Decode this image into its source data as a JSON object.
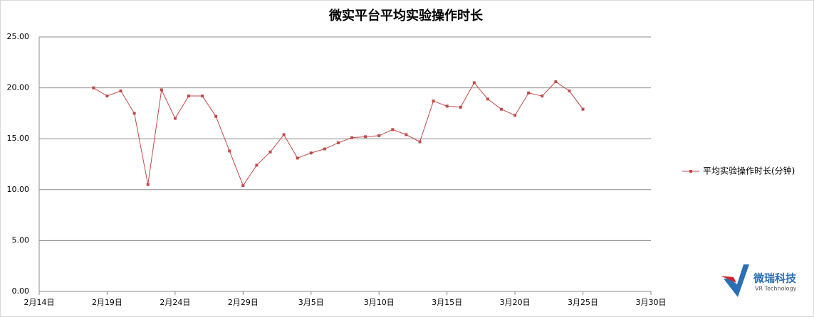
{
  "chart_data": {
    "type": "line",
    "title": "微实平台平均实验操作时长",
    "x": [
      "2月18日",
      "2月19日",
      "2月20日",
      "2月21日",
      "2月22日",
      "2月23日",
      "2月24日",
      "2月25日",
      "2月26日",
      "2月27日",
      "2月28日",
      "2月29日",
      "3月1日",
      "3月2日",
      "3月3日",
      "3月4日",
      "3月5日",
      "3月6日",
      "3月7日",
      "3月8日",
      "3月9日",
      "3月10日",
      "3月11日",
      "3月12日",
      "3月13日",
      "3月14日",
      "3月15日",
      "3月16日",
      "3月17日",
      "3月18日",
      "3月19日",
      "3月20日",
      "3月21日",
      "3月22日",
      "3月23日",
      "3月24日",
      "3月25日"
    ],
    "series": [
      {
        "name": "平均实验操作时长(分钟)",
        "color": "#be4b48",
        "values": [
          20.0,
          19.2,
          19.7,
          17.5,
          10.5,
          19.8,
          17.0,
          19.2,
          19.2,
          17.2,
          13.8,
          10.4,
          12.4,
          13.7,
          15.4,
          13.1,
          13.6,
          14.0,
          14.6,
          15.1,
          15.2,
          15.3,
          15.9,
          15.4,
          14.7,
          18.7,
          18.2,
          18.1,
          20.5,
          18.9,
          17.9,
          17.3,
          19.5,
          19.2,
          20.6,
          19.7,
          17.9
        ]
      }
    ],
    "xlim": [
      "2月14日",
      "3月30日"
    ],
    "xticks": [
      "2月14日",
      "2月19日",
      "2月24日",
      "2月29日",
      "3月5日",
      "3月10日",
      "3月15日",
      "3月20日",
      "3月25日",
      "3月30日"
    ],
    "ylim": [
      0,
      25
    ],
    "yticks": [
      {
        "value": 0,
        "label": "0.00"
      },
      {
        "value": 5,
        "label": "5.00"
      },
      {
        "value": 10,
        "label": "10.00"
      },
      {
        "value": 15,
        "label": "15.00"
      },
      {
        "value": 20,
        "label": "20.00"
      },
      {
        "value": 25,
        "label": "25.00"
      }
    ],
    "grid": true,
    "legend": "right"
  },
  "logo": {
    "name": "微瑞科技",
    "tagline": "VR Technology"
  }
}
